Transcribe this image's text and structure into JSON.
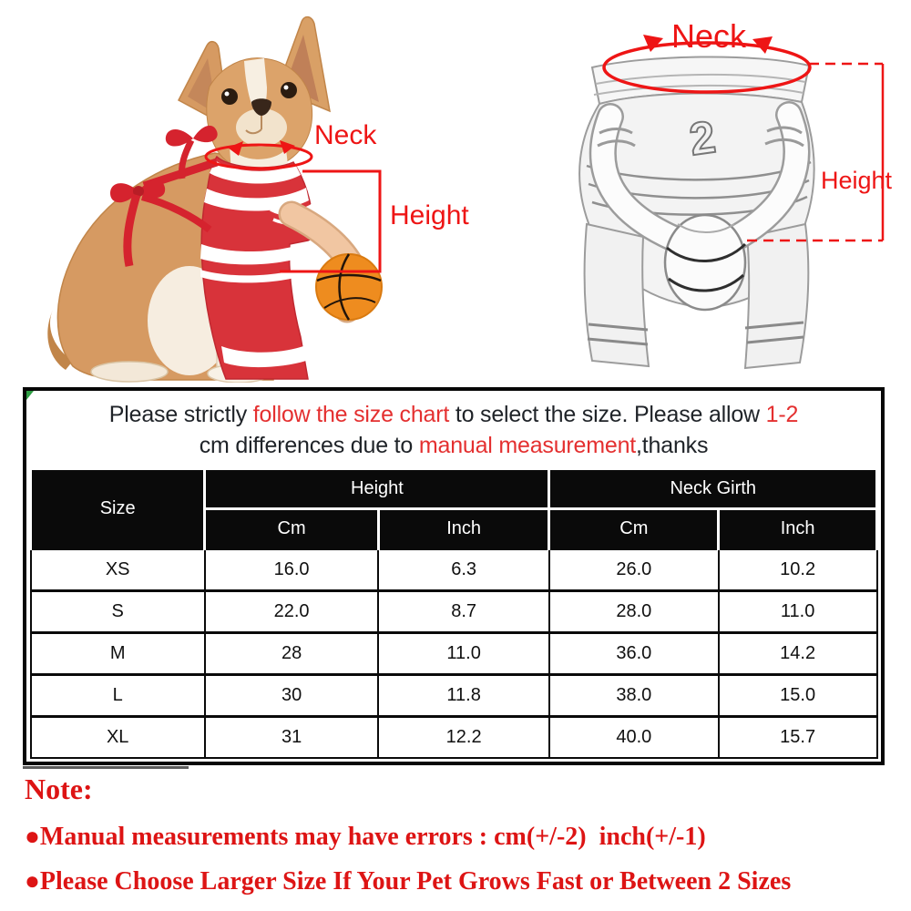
{
  "colors": {
    "annotation_red": "#ee1515",
    "notice_red": "#e43030",
    "notes_red": "#dd1414",
    "text_dark": "#1f2328",
    "header_bg": "#0a0a0a",
    "header_text": "#ffffff",
    "jersey_red": "#d8333a",
    "ribbon_red": "#d5232e",
    "basketball_orange": "#ee8c1f",
    "dog_tan": "#d69a62",
    "green_corner": "#2f9e44"
  },
  "photo": {
    "neck_label": "Neck",
    "height_label": "Height"
  },
  "sketch": {
    "neck_label": "Neck",
    "height_label": "Height",
    "jersey_number": "2"
  },
  "notice": {
    "lines": [
      [
        {
          "text": "Please strictly ",
          "red": false
        },
        {
          "text": "follow the size chart",
          "red": true
        },
        {
          "text": " to select the size. Please allow ",
          "red": false
        },
        {
          "text": "1-2",
          "red": true
        }
      ],
      [
        {
          "text": "cm differences due to ",
          "red": false
        },
        {
          "text": "manual measurement",
          "red": true
        },
        {
          "text": ",thanks",
          "red": false
        }
      ]
    ]
  },
  "size_chart": {
    "header": {
      "size": "Size",
      "height": "Height",
      "neck_girth": "Neck Girth",
      "unit_cm": "Cm",
      "unit_inch": "Inch"
    },
    "rows": [
      {
        "size": "XS",
        "height_cm": "16.0",
        "height_inch": "6.3",
        "neck_cm": "26.0",
        "neck_inch": "10.2"
      },
      {
        "size": "S",
        "height_cm": "22.0",
        "height_inch": "8.7",
        "neck_cm": "28.0",
        "neck_inch": "11.0"
      },
      {
        "size": "M",
        "height_cm": "28",
        "height_inch": "11.0",
        "neck_cm": "36.0",
        "neck_inch": "14.2"
      },
      {
        "size": "L",
        "height_cm": "30",
        "height_inch": "11.8",
        "neck_cm": "38.0",
        "neck_inch": "15.0"
      },
      {
        "size": "XL",
        "height_cm": "31",
        "height_inch": "12.2",
        "neck_cm": "40.0",
        "neck_inch": "15.7"
      }
    ]
  },
  "notes": {
    "title": "Note:",
    "items": [
      "●Manual measurements may have errors : cm(+/-2)  inch(+/-1)",
      "●Please Choose Larger Size If Your Pet Grows Fast or Between 2 Sizes"
    ]
  }
}
